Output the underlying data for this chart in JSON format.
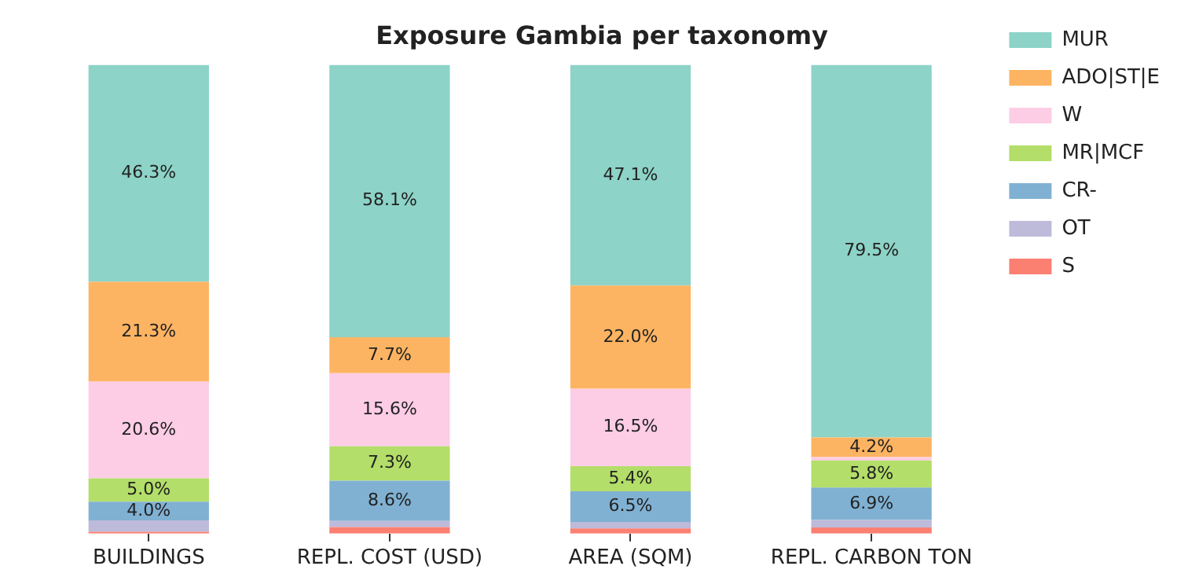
{
  "chart_data": {
    "type": "bar",
    "title": "Exposure Gambia per taxonomy",
    "stacked": true,
    "categories": [
      "BUILDINGS",
      "REPL. COST (USD)",
      "AREA (SQM)",
      "REPL. CARBON TON"
    ],
    "ylim": [
      0,
      100
    ],
    "tick_labels": "x",
    "legend": "top right",
    "series": [
      {
        "name": "S",
        "color": "#fb8072",
        "values": [
          0.4,
          1.4,
          1.1,
          1.3
        ],
        "value_labels": [
          null,
          null,
          null,
          null
        ]
      },
      {
        "name": "OT",
        "color": "#bebada",
        "values": [
          2.4,
          1.3,
          1.4,
          1.6
        ],
        "value_labels": [
          null,
          null,
          null,
          null
        ]
      },
      {
        "name": "CR-",
        "color": "#80b1d3",
        "values": [
          4.0,
          8.6,
          6.5,
          6.9
        ],
        "value_labels": [
          "4.0%",
          "8.6%",
          "6.5%",
          "6.9%"
        ]
      },
      {
        "name": "MR|MCF",
        "color": "#b3de69",
        "values": [
          5.0,
          7.3,
          5.4,
          5.8
        ],
        "value_labels": [
          "5.0%",
          "7.3%",
          "5.4%",
          "5.8%"
        ]
      },
      {
        "name": "W",
        "color": "#fccde5",
        "values": [
          20.6,
          15.6,
          16.5,
          0.7
        ],
        "value_labels": [
          "20.6%",
          "15.6%",
          "16.5%",
          null
        ]
      },
      {
        "name": "ADO|ST|E",
        "color": "#fdb462",
        "values": [
          21.3,
          7.7,
          22.0,
          4.2
        ],
        "value_labels": [
          "21.3%",
          "7.7%",
          "22.0%",
          "4.2%"
        ]
      },
      {
        "name": "MUR",
        "color": "#8dd3c7",
        "values": [
          46.3,
          58.1,
          47.1,
          79.5
        ],
        "value_labels": [
          "46.3%",
          "58.1%",
          "47.1%",
          "79.5%"
        ]
      }
    ]
  }
}
